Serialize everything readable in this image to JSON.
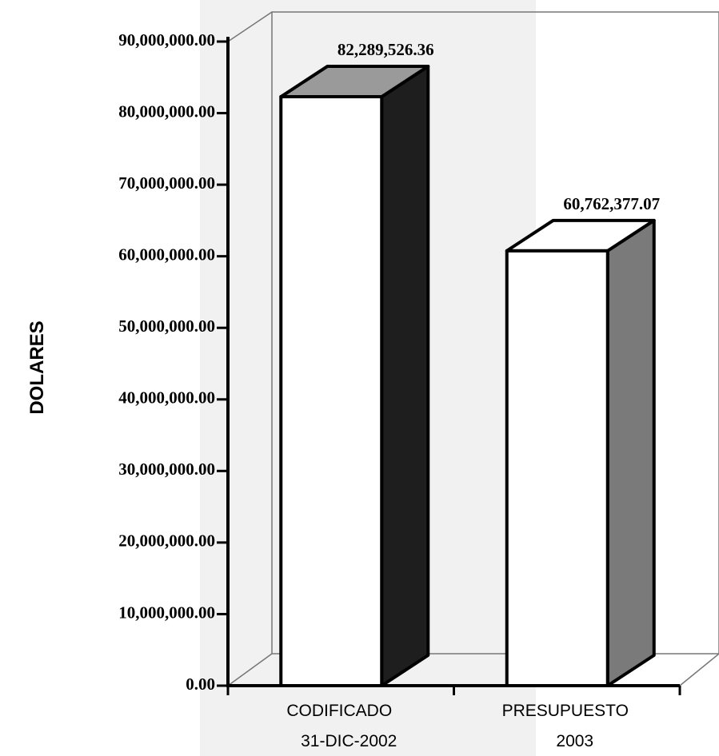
{
  "chart_data": {
    "type": "bar3d",
    "y_label": "DOLARES",
    "categories": [
      [
        "CODIFICADO",
        "31-DIC-2002"
      ],
      [
        "PRESUPUESTO",
        "2003"
      ]
    ],
    "values": [
      82289526.36,
      60762377.07
    ],
    "value_labels": [
      "82,289,526.36",
      "60,762,377.07"
    ],
    "colors": {
      "front": "#ffffff",
      "top": [
        "#9a9a9a",
        "#ffffff"
      ],
      "side": [
        "#1e1e1e",
        "#7a7a7a"
      ]
    },
    "ylim": [
      0,
      90000000
    ],
    "yticks": [
      {
        "value": 0,
        "label": "0.00"
      },
      {
        "value": 10000000,
        "label": "10,000,000.00"
      },
      {
        "value": 20000000,
        "label": "20,000,000.00"
      },
      {
        "value": 30000000,
        "label": "30,000,000.00"
      },
      {
        "value": 40000000,
        "label": "40,000,000.00"
      },
      {
        "value": 50000000,
        "label": "50,000,000.00"
      },
      {
        "value": 60000000,
        "label": "60,000,000.00"
      },
      {
        "value": 70000000,
        "label": "70,000,000.00"
      },
      {
        "value": 80000000,
        "label": "80,000,000.00"
      },
      {
        "value": 90000000,
        "label": "90,000,000.00"
      }
    ]
  }
}
